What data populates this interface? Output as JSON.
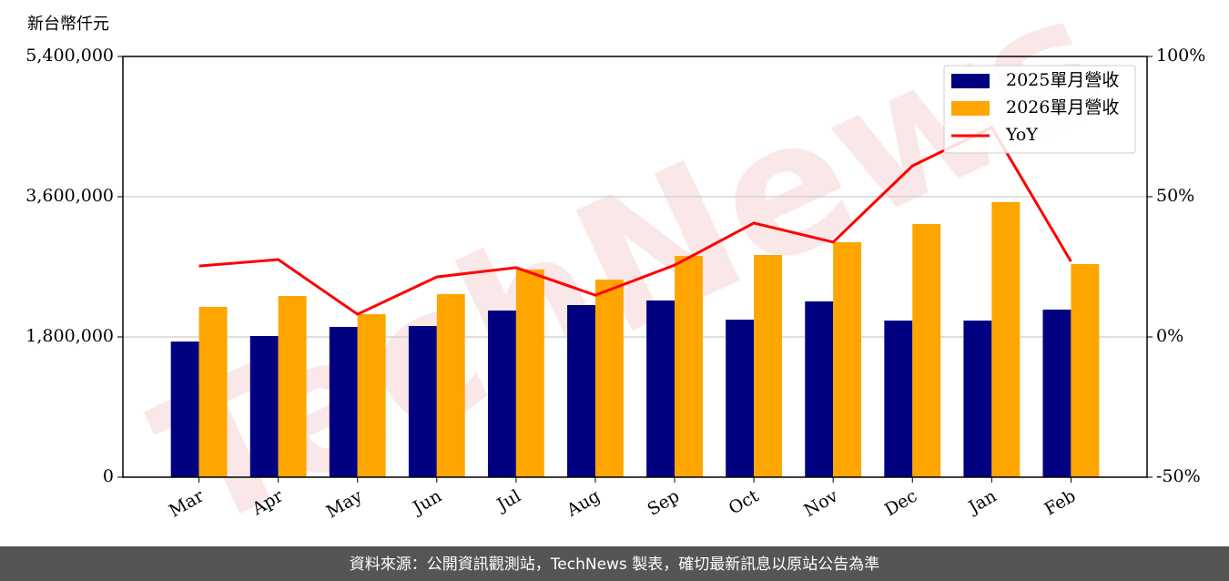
{
  "chart_data": {
    "type": "bar",
    "y_label": "新台幣仟元",
    "watermark": "TechNews",
    "source": "資料來源：公開資訊觀測站，TechNews 製表，確切最新訊息以原站公告為準",
    "categories": [
      "Mar",
      "Apr",
      "May",
      "Jun",
      "Jul",
      "Aug",
      "Sep",
      "Oct",
      "Nov",
      "Dec",
      "Jan",
      "Feb"
    ],
    "series": [
      {
        "name": "2025單月營收",
        "color": "#000080",
        "type": "bar",
        "axis": "y",
        "values": [
          1741000,
          1812000,
          1929000,
          1940000,
          2139000,
          2209000,
          2268000,
          2022000,
          2256000,
          2010000,
          2010000,
          2151000
        ]
      },
      {
        "name": "2026單月營收",
        "color": "#ffa500",
        "type": "bar",
        "axis": "y",
        "values": [
          2186000,
          2326000,
          2092000,
          2349000,
          2665000,
          2536000,
          2840000,
          2852000,
          3016000,
          3249000,
          3530000,
          2735000
        ]
      },
      {
        "name": "YoY",
        "color": "#ff0000",
        "type": "line",
        "axis": "y2",
        "values": [
          25.3,
          27.6,
          8.1,
          21.4,
          24.7,
          14.9,
          25.6,
          40.6,
          33.8,
          61.0,
          74.7,
          26.9
        ]
      }
    ],
    "ylim": [
      0,
      5400000
    ],
    "yticks": [
      0,
      {
        "value": 1800000,
        "label": "1,800,000"
      },
      {
        "value": 3600000,
        "label": "3,600,000"
      },
      {
        "value": 5400000,
        "label": "5,400,000"
      }
    ],
    "y2lim": [
      -50,
      100
    ],
    "y2ticks": [
      {
        "value": -50,
        "label": "-50%"
      },
      {
        "value": 0,
        "label": "0%"
      },
      {
        "value": 50,
        "label": "50%"
      },
      {
        "value": 100,
        "label": "100%"
      }
    ],
    "grid": true,
    "legend": "upper right"
  }
}
